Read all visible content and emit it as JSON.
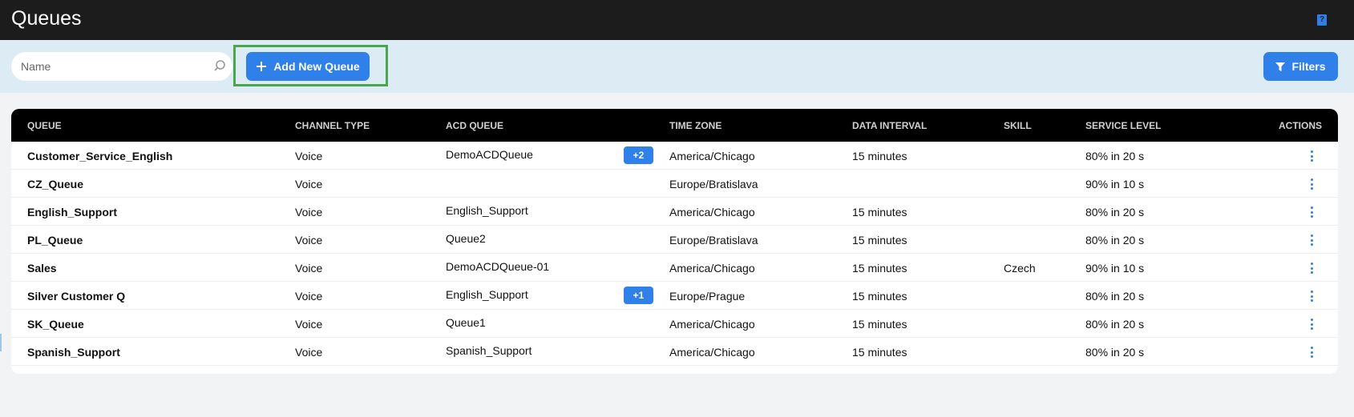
{
  "header": {
    "title": "Queues",
    "help_icon": "help-book-icon"
  },
  "toolbar": {
    "search_placeholder": "Name",
    "add_label": "Add New Queue",
    "filters_label": "Filters"
  },
  "colors": {
    "accent": "#2f80e8",
    "highlight": "#4aa64d"
  },
  "table": {
    "columns": [
      "QUEUE",
      "CHANNEL TYPE",
      "ACD QUEUE",
      "TIME ZONE",
      "DATA INTERVAL",
      "SKILL",
      "SERVICE LEVEL",
      "ACTIONS"
    ],
    "rows": [
      {
        "queue": "Customer_Service_English",
        "channel": "Voice",
        "acd": "DemoACDQueue",
        "badge": "+2",
        "tz": "America/Chicago",
        "interval": "15 minutes",
        "skill": "",
        "sl": "80% in 20 s"
      },
      {
        "queue": "CZ_Queue",
        "channel": "Voice",
        "acd": "",
        "badge": "",
        "tz": "Europe/Bratislava",
        "interval": "",
        "skill": "",
        "sl": "90% in 10 s"
      },
      {
        "queue": "English_Support",
        "channel": "Voice",
        "acd": "English_Support",
        "badge": "",
        "tz": "America/Chicago",
        "interval": "15 minutes",
        "skill": "",
        "sl": "80% in 20 s"
      },
      {
        "queue": "PL_Queue",
        "channel": "Voice",
        "acd": "Queue2",
        "badge": "",
        "tz": "Europe/Bratislava",
        "interval": "15 minutes",
        "skill": "",
        "sl": "80% in 20 s"
      },
      {
        "queue": "Sales",
        "channel": "Voice",
        "acd": "DemoACDQueue-01",
        "badge": "",
        "tz": "America/Chicago",
        "interval": "15 minutes",
        "skill": "Czech",
        "sl": "90% in 10 s"
      },
      {
        "queue": "Silver Customer Q",
        "channel": "Voice",
        "acd": "English_Support",
        "badge": "+1",
        "tz": "Europe/Prague",
        "interval": "15 minutes",
        "skill": "",
        "sl": "80% in 20 s"
      },
      {
        "queue": "SK_Queue",
        "channel": "Voice",
        "acd": "Queue1",
        "badge": "",
        "tz": "America/Chicago",
        "interval": "15 minutes",
        "skill": "",
        "sl": "80% in 20 s"
      },
      {
        "queue": "Spanish_Support",
        "channel": "Voice",
        "acd": "Spanish_Support",
        "badge": "",
        "tz": "America/Chicago",
        "interval": "15 minutes",
        "skill": "",
        "sl": "80% in 20 s"
      }
    ]
  }
}
